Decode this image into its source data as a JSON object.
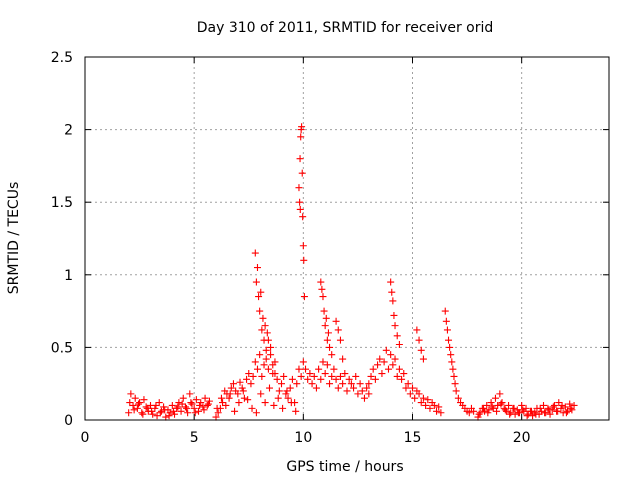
{
  "chart_data": {
    "type": "scatter",
    "title": "Day 310 of 2011, SRMTID for receiver orid",
    "xlabel": "GPS time / hours",
    "ylabel": "SRMTID / TECUs",
    "xlim": [
      0,
      24
    ],
    "ylim": [
      0,
      2.5
    ],
    "xticks": [
      0,
      5,
      10,
      15,
      20
    ],
    "yticks": [
      0,
      0.5,
      1,
      1.5,
      2,
      2.5
    ],
    "xtick_labels": [
      "0",
      "5",
      "10",
      "15",
      "20"
    ],
    "ytick_labels": [
      "0",
      "0.5",
      "1",
      "1.5",
      "2",
      "2.5"
    ],
    "grid": true,
    "marker": "+",
    "color": "#ff0000",
    "series": [
      {
        "name": "SRMTID",
        "x": [
          2.0,
          2.1,
          2.2,
          2.3,
          2.4,
          2.5,
          2.6,
          2.7,
          2.8,
          2.9,
          3.0,
          3.1,
          3.2,
          3.3,
          3.4,
          3.5,
          3.6,
          3.7,
          3.8,
          3.9,
          4.0,
          4.1,
          4.2,
          4.3,
          4.4,
          4.5,
          4.6,
          4.7,
          4.8,
          4.9,
          5.0,
          5.1,
          5.2,
          5.3,
          5.4,
          5.5,
          5.6,
          5.7,
          2.05,
          2.25,
          2.45,
          2.65,
          2.85,
          3.05,
          3.25,
          3.45,
          3.65,
          3.85,
          4.05,
          4.25,
          4.45,
          4.65,
          4.85,
          5.05,
          5.25,
          5.45,
          5.65,
          6.0,
          6.1,
          6.2,
          6.3,
          6.4,
          6.5,
          6.6,
          6.7,
          6.8,
          6.9,
          7.0,
          7.1,
          7.2,
          7.3,
          7.4,
          7.5,
          7.6,
          7.7,
          7.8,
          7.9,
          8.0,
          8.1,
          8.2,
          8.3,
          8.4,
          8.5,
          8.6,
          8.7,
          8.8,
          8.9,
          9.0,
          9.1,
          9.2,
          9.3,
          9.4,
          9.5,
          9.6,
          9.7,
          9.8,
          9.9,
          6.05,
          6.25,
          6.45,
          6.65,
          6.85,
          7.05,
          7.25,
          7.45,
          7.65,
          7.85,
          8.05,
          8.25,
          8.45,
          8.65,
          8.85,
          9.05,
          9.25,
          9.45,
          9.65,
          7.8,
          7.85,
          7.9,
          7.95,
          8.0,
          8.05,
          8.1,
          8.15,
          8.2,
          8.25,
          8.3,
          8.35,
          8.4,
          8.5,
          8.6,
          8.7,
          9.8,
          9.85,
          9.88,
          9.9,
          9.92,
          9.95,
          9.97,
          10.0,
          10.02,
          10.05,
          9.83,
          9.86,
          10.0,
          10.1,
          10.2,
          10.3,
          10.4,
          10.5,
          10.6,
          10.7,
          10.8,
          10.9,
          11.0,
          11.1,
          11.2,
          11.3,
          11.4,
          11.5,
          11.6,
          11.7,
          11.8,
          11.9,
          12.0,
          12.1,
          12.2,
          12.3,
          12.4,
          12.5,
          12.6,
          12.7,
          12.8,
          12.9,
          13.0,
          10.8,
          10.85,
          10.9,
          10.95,
          11.0,
          11.05,
          11.1,
          11.15,
          11.2,
          11.3,
          11.5,
          11.6,
          11.7,
          11.8,
          13.0,
          13.1,
          13.2,
          13.3,
          13.4,
          13.5,
          13.6,
          13.7,
          13.8,
          13.9,
          14.0,
          14.1,
          14.2,
          14.3,
          14.4,
          14.5,
          14.6,
          14.7,
          14.8,
          14.9,
          15.0,
          15.1,
          15.2,
          15.3,
          15.4,
          15.5,
          15.6,
          15.7,
          15.8,
          15.9,
          16.0,
          16.1,
          16.2,
          16.3,
          14.0,
          14.05,
          14.1,
          14.15,
          14.2,
          14.3,
          14.4,
          15.2,
          15.3,
          15.4,
          15.5,
          16.5,
          16.55,
          16.6,
          16.65,
          16.7,
          16.75,
          16.8,
          16.85,
          16.9,
          16.95,
          17.0,
          17.1,
          17.2,
          17.3,
          17.4,
          17.5,
          17.6,
          17.7,
          17.8,
          18.0,
          18.1,
          18.2,
          18.3,
          18.4,
          18.5,
          18.6,
          18.7,
          18.8,
          18.9,
          19.0,
          19.1,
          19.2,
          19.3,
          19.4,
          19.5,
          19.6,
          19.7,
          19.8,
          19.9,
          20.0,
          20.1,
          20.2,
          20.3,
          20.4,
          20.5,
          20.6,
          20.7,
          20.8,
          20.9,
          21.0,
          21.1,
          21.2,
          21.3,
          21.4,
          21.5,
          21.6,
          21.7,
          21.8,
          21.9,
          22.0,
          22.1,
          22.2,
          22.3,
          22.4,
          18.05,
          18.25,
          18.45,
          18.65,
          18.85,
          19.05,
          19.25,
          19.45,
          19.65,
          19.85,
          20.05,
          20.25,
          20.45,
          20.65,
          20.85,
          21.05,
          21.25,
          21.45,
          21.65,
          21.85,
          22.05,
          22.25
        ],
        "y": [
          0.05,
          0.18,
          0.1,
          0.15,
          0.08,
          0.12,
          0.05,
          0.14,
          0.09,
          0.06,
          0.1,
          0.04,
          0.08,
          0.03,
          0.12,
          0.06,
          0.09,
          0.02,
          0.07,
          0.05,
          0.1,
          0.04,
          0.08,
          0.12,
          0.06,
          0.15,
          0.09,
          0.05,
          0.18,
          0.11,
          0.08,
          0.14,
          0.06,
          0.12,
          0.09,
          0.15,
          0.1,
          0.13,
          0.12,
          0.07,
          0.11,
          0.04,
          0.08,
          0.06,
          0.1,
          0.05,
          0.07,
          0.03,
          0.06,
          0.09,
          0.11,
          0.08,
          0.12,
          0.05,
          0.1,
          0.07,
          0.11,
          0.02,
          0.05,
          0.08,
          0.12,
          0.2,
          0.18,
          0.15,
          0.22,
          0.25,
          0.2,
          0.18,
          0.26,
          0.22,
          0.15,
          0.28,
          0.32,
          0.25,
          0.3,
          0.4,
          0.35,
          0.45,
          0.3,
          0.38,
          0.42,
          0.35,
          0.5,
          0.32,
          0.4,
          0.28,
          0.2,
          0.25,
          0.3,
          0.18,
          0.15,
          0.22,
          0.28,
          0.12,
          0.25,
          0.35,
          0.3,
          0.08,
          0.15,
          0.1,
          0.18,
          0.06,
          0.12,
          0.2,
          0.14,
          0.08,
          0.05,
          0.18,
          0.12,
          0.22,
          0.1,
          0.15,
          0.08,
          0.2,
          0.12,
          0.06,
          1.15,
          0.95,
          1.05,
          0.85,
          0.75,
          0.88,
          0.62,
          0.7,
          0.55,
          0.65,
          0.48,
          0.6,
          0.55,
          0.45,
          0.38,
          0.32,
          1.6,
          1.8,
          1.95,
          2.0,
          2.02,
          1.7,
          1.4,
          1.2,
          1.1,
          0.85,
          1.5,
          1.45,
          0.4,
          0.35,
          0.28,
          0.32,
          0.25,
          0.3,
          0.22,
          0.35,
          0.28,
          0.4,
          0.32,
          0.38,
          0.25,
          0.3,
          0.35,
          0.28,
          0.22,
          0.3,
          0.25,
          0.32,
          0.2,
          0.28,
          0.25,
          0.22,
          0.3,
          0.18,
          0.25,
          0.2,
          0.15,
          0.22,
          0.18,
          0.95,
          0.9,
          0.85,
          0.75,
          0.65,
          0.7,
          0.55,
          0.6,
          0.5,
          0.45,
          0.68,
          0.62,
          0.55,
          0.42,
          0.25,
          0.3,
          0.35,
          0.28,
          0.38,
          0.42,
          0.32,
          0.4,
          0.48,
          0.35,
          0.45,
          0.38,
          0.42,
          0.3,
          0.35,
          0.28,
          0.32,
          0.22,
          0.25,
          0.18,
          0.22,
          0.15,
          0.2,
          0.18,
          0.12,
          0.15,
          0.1,
          0.14,
          0.08,
          0.12,
          0.1,
          0.06,
          0.09,
          0.05,
          0.95,
          0.88,
          0.82,
          0.72,
          0.65,
          0.58,
          0.52,
          0.62,
          0.55,
          0.48,
          0.42,
          0.75,
          0.68,
          0.62,
          0.55,
          0.5,
          0.45,
          0.4,
          0.35,
          0.3,
          0.25,
          0.2,
          0.15,
          0.12,
          0.1,
          0.08,
          0.06,
          0.05,
          0.08,
          0.06,
          0.02,
          0.05,
          0.08,
          0.06,
          0.1,
          0.07,
          0.12,
          0.08,
          0.15,
          0.1,
          0.18,
          0.12,
          0.08,
          0.06,
          0.1,
          0.05,
          0.08,
          0.04,
          0.07,
          0.05,
          0.1,
          0.06,
          0.08,
          0.04,
          0.06,
          0.03,
          0.05,
          0.08,
          0.04,
          0.06,
          0.1,
          0.05,
          0.08,
          0.04,
          0.07,
          0.1,
          0.06,
          0.12,
          0.08,
          0.05,
          0.09,
          0.06,
          0.11,
          0.07,
          0.1,
          0.04,
          0.08,
          0.05,
          0.09,
          0.06,
          0.11,
          0.07,
          0.04,
          0.08,
          0.05,
          0.07,
          0.03,
          0.06,
          0.04,
          0.08,
          0.05,
          0.07,
          0.09,
          0.06,
          0.1,
          0.05,
          0.08
        ]
      }
    ]
  }
}
